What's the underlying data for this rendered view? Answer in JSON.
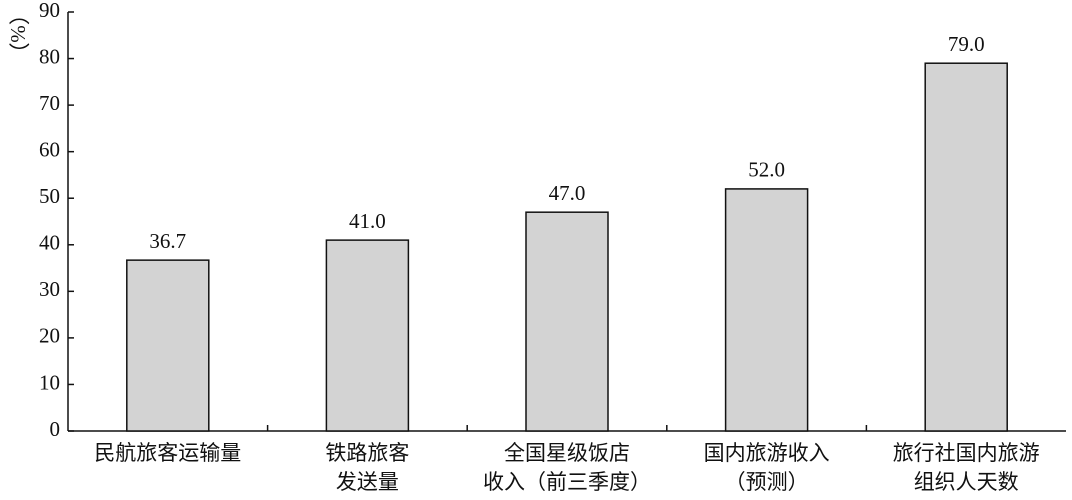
{
  "chart_data": {
    "type": "bar",
    "y_label": "（%）",
    "categories": [
      "民航旅客运输量",
      "铁路旅客\n发送量",
      "全国星级饭店\n收入（前三季度）",
      "国内旅游收入\n（预测）",
      "旅行社国内旅游\n组织人天数"
    ],
    "values": [
      36.7,
      41.0,
      47.0,
      52.0,
      79.0
    ],
    "value_labels": [
      "36.7",
      "41.0",
      "47.0",
      "52.0",
      "79.0"
    ],
    "color": "#d3d3d3",
    "ylim": [
      0,
      90
    ],
    "yticks": [
      0,
      10,
      20,
      30,
      40,
      50,
      60,
      70,
      80,
      90
    ],
    "grid": false
  }
}
